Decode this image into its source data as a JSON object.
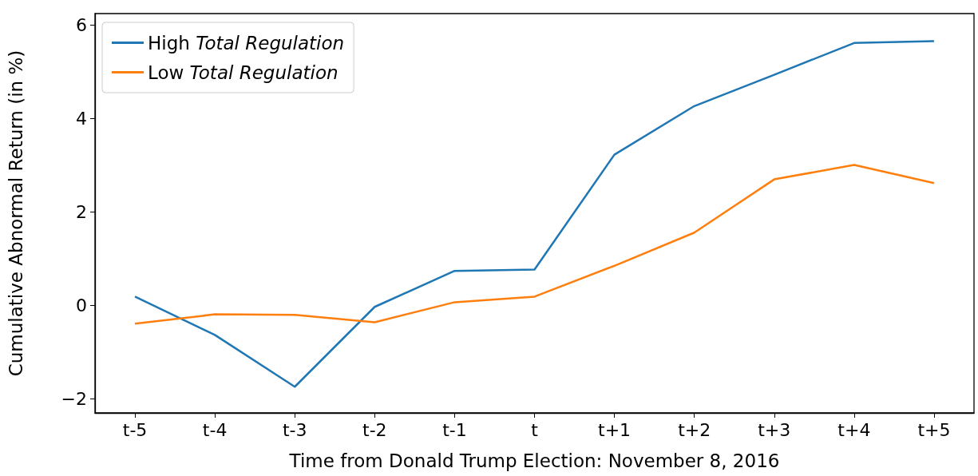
{
  "chart_data": {
    "type": "line",
    "xlabel": "Time from Donald Trump Election: November 8, 2016",
    "ylabel": "Cumulative Abnormal Return (in %)",
    "categories": [
      "t-5",
      "t-4",
      "t-3",
      "t-2",
      "t-1",
      "t",
      "t+1",
      "t+2",
      "t+3",
      "t+4",
      "t+5"
    ],
    "series": [
      {
        "name": "High Total Regulation",
        "color": "#1f77b4",
        "values": [
          0.19,
          -0.63,
          -1.74,
          -0.03,
          0.74,
          0.77,
          3.23,
          4.27,
          4.94,
          5.62,
          5.66
        ]
      },
      {
        "name": "Low Total Regulation",
        "color": "#ff7f0e",
        "values": [
          -0.39,
          -0.19,
          -0.2,
          -0.36,
          0.07,
          0.19,
          0.85,
          1.56,
          2.7,
          3.01,
          2.62
        ]
      }
    ],
    "ylim": [
      -2.3,
      6.25
    ],
    "yticks": [
      {
        "value": -2,
        "label": "−2"
      },
      0,
      2,
      4,
      6
    ],
    "grid": false,
    "legend": "top left",
    "marker": "none",
    "line_style": "solid"
  }
}
